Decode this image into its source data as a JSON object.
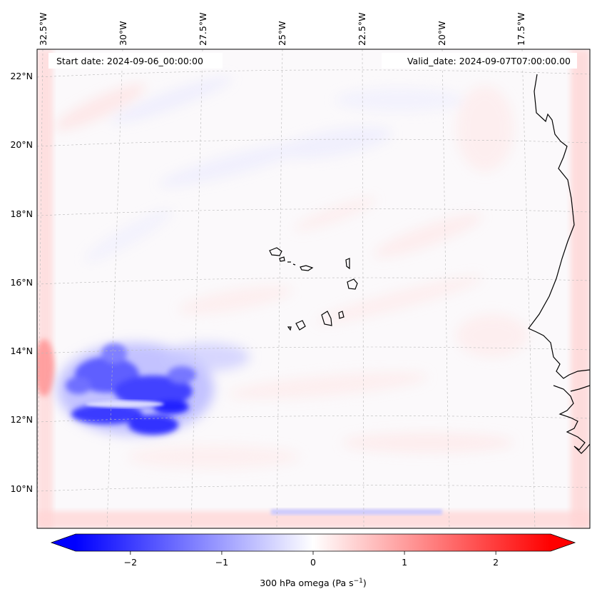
{
  "map": {
    "start_date": "Start date: 2024-09-06_00:00:00",
    "valid_date": "Valid_date: 2024-09-07T07:00:00.00",
    "lon_labels": [
      "32.5°W",
      "30°W",
      "27.5°W",
      "25°W",
      "22.5°W",
      "20°W",
      "17.5°W"
    ],
    "lat_labels": [
      "22°N",
      "20°N",
      "18°N",
      "16°N",
      "14°N",
      "12°N",
      "10°N"
    ],
    "regions": [
      "Cabo Verde islands",
      "West African coast"
    ]
  },
  "colorbar": {
    "title": "300 hPa omega (Pa s",
    "title_sup": "−1",
    "title_close": ")",
    "tick_labels": [
      "−2",
      "−1",
      "0",
      "1",
      "2"
    ],
    "tick_values": [
      -2,
      -1,
      0,
      1,
      2
    ],
    "range": [
      -2.6,
      2.6
    ],
    "colors": {
      "low": "#0000ff",
      "mid": "#ffffff",
      "high": "#ff0000"
    }
  }
}
